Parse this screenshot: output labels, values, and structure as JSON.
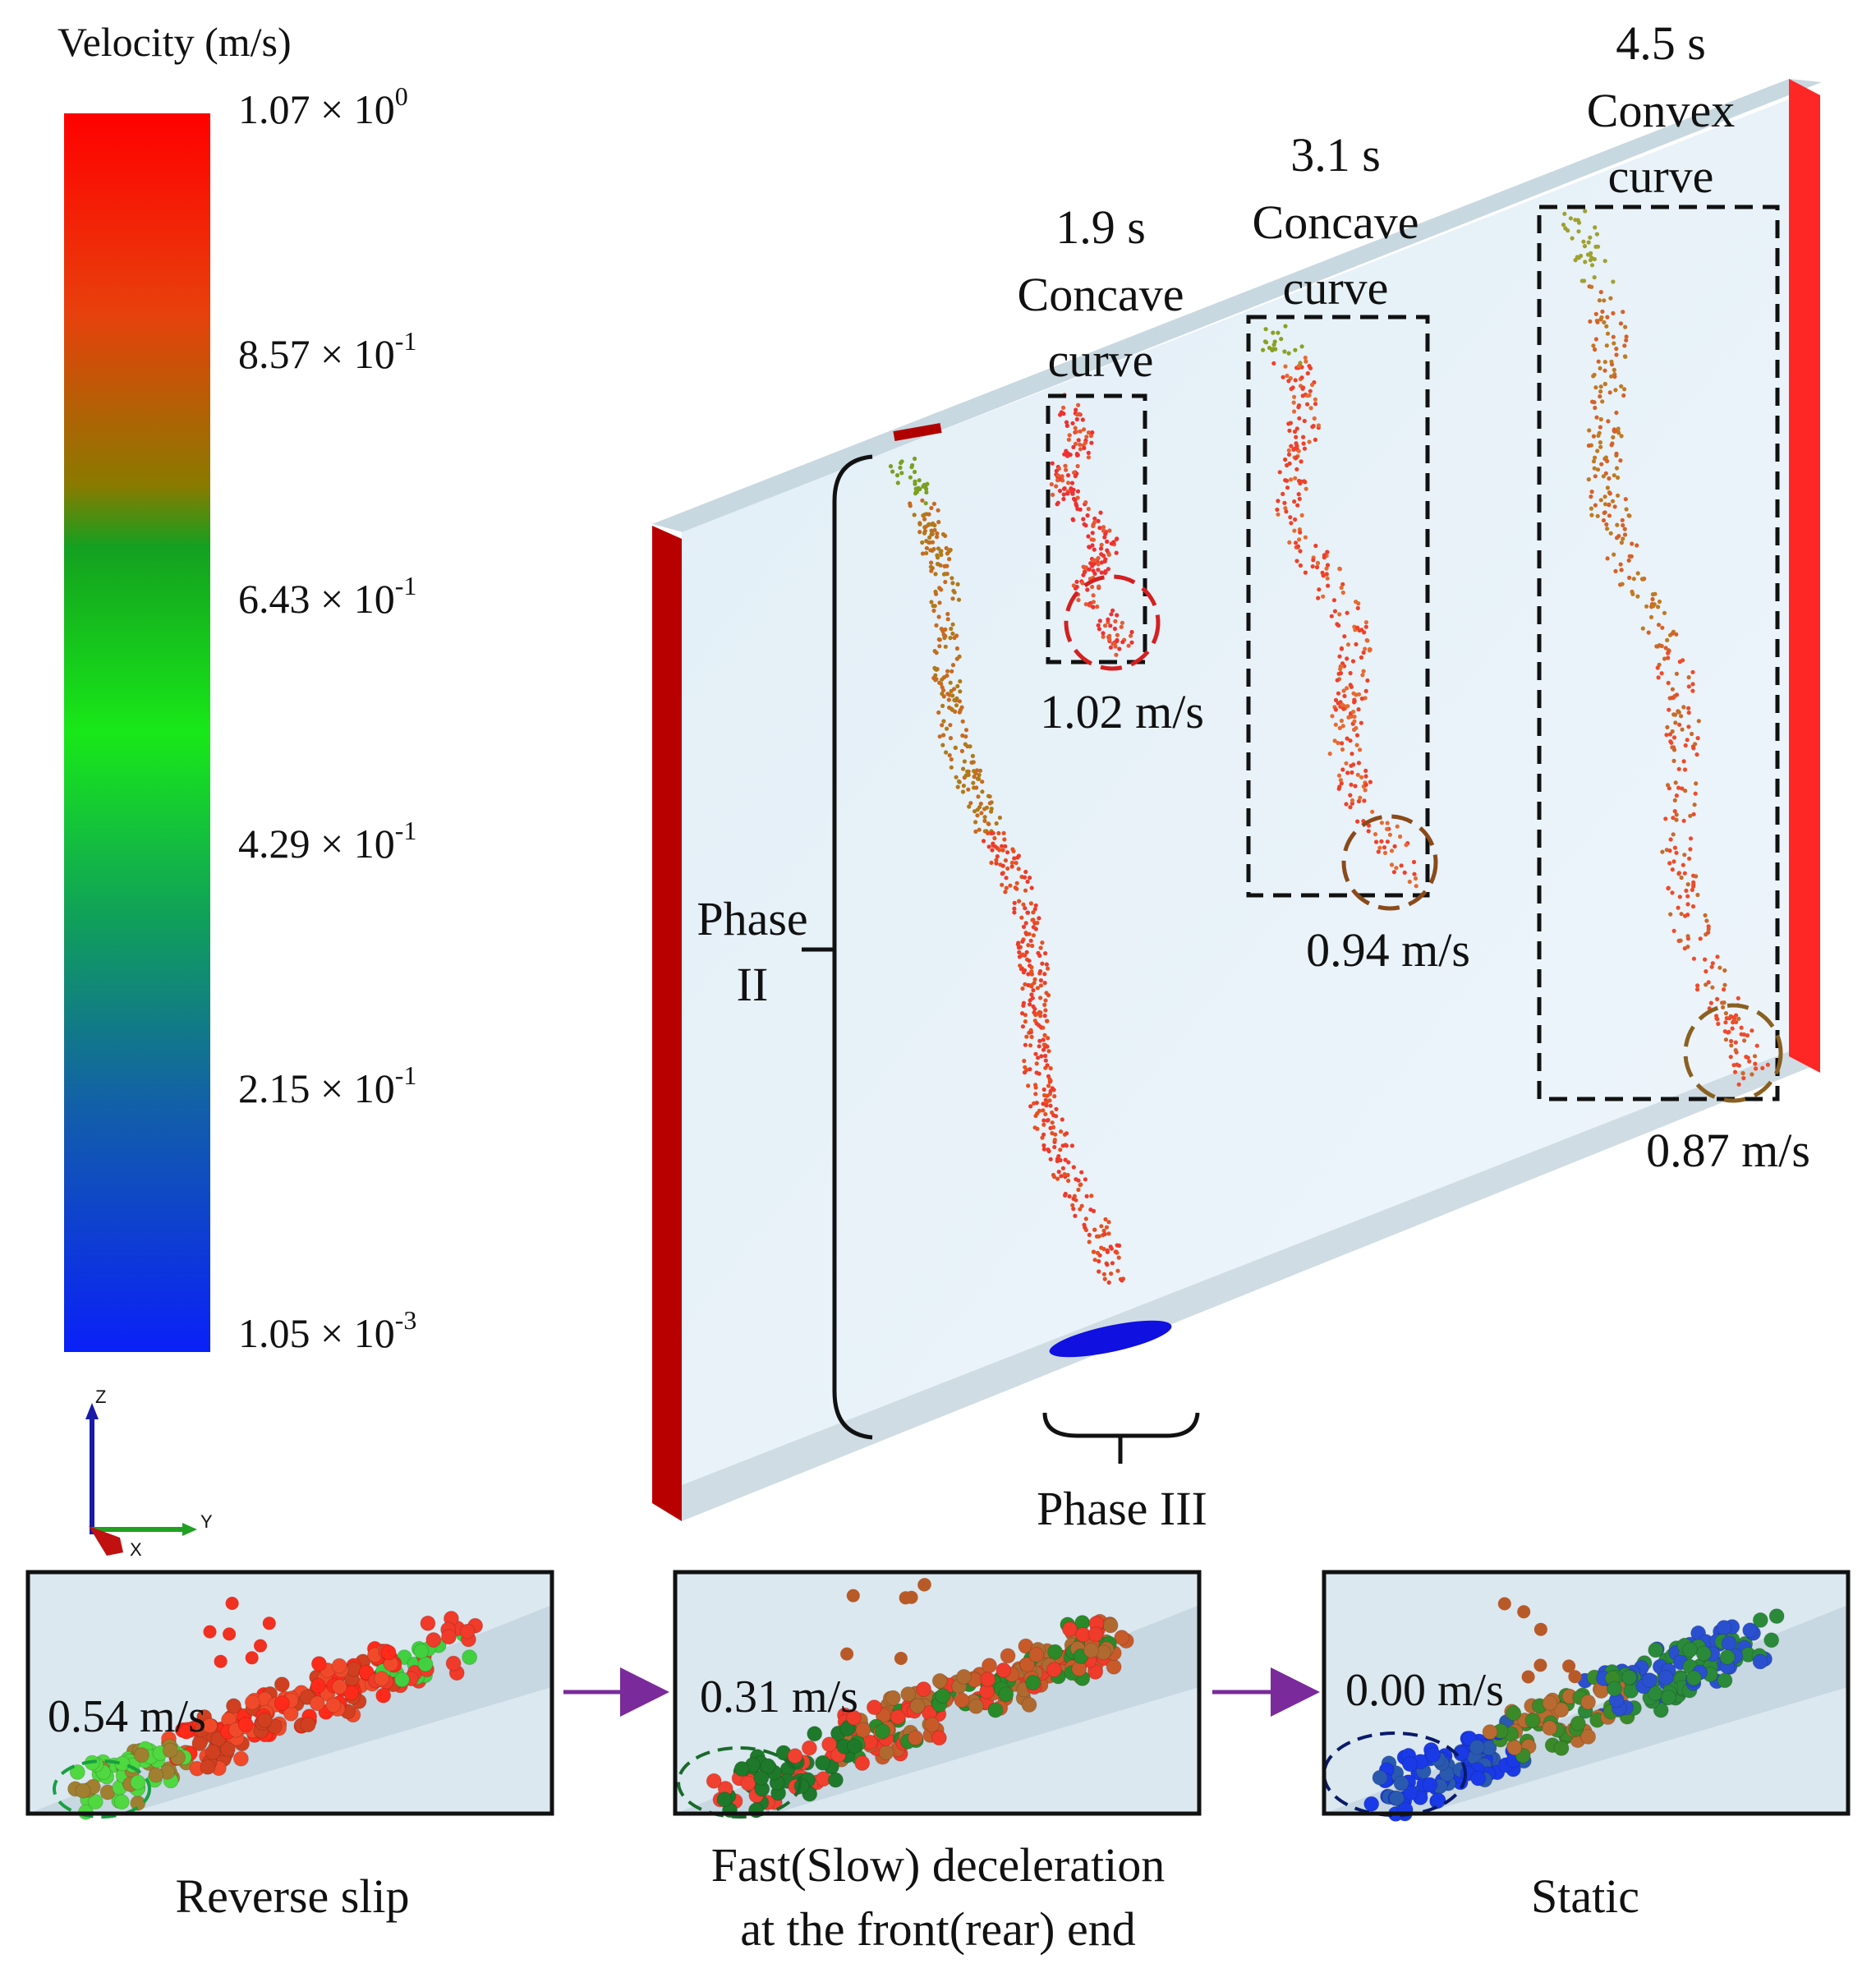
{
  "legend": {
    "title": "Velocity (m/s)",
    "ticks": [
      {
        "mant": "1.07",
        "exp": "0"
      },
      {
        "mant": "8.57",
        "exp": "-1"
      },
      {
        "mant": "6.43",
        "exp": "-1"
      },
      {
        "mant": "4.29",
        "exp": "-1"
      },
      {
        "mant": "2.15",
        "exp": "-1"
      },
      {
        "mant": "1.05",
        "exp": "-3"
      }
    ],
    "times_sign": "× 10",
    "colors": [
      "#ff0000",
      "#e05010",
      "#8a7a00",
      "#14a020",
      "#18e818",
      "#10a05a",
      "#1260a8",
      "#0a20f8"
    ]
  },
  "axes": {
    "z": "Z",
    "y": "Y",
    "x": "X"
  },
  "snapshots": [
    {
      "time": "1.9 s",
      "line1": "Concave",
      "line2": "curve",
      "speed": "1.02 m/s",
      "circle_color": "#d42020"
    },
    {
      "time": "3.1 s",
      "line1": "Concave",
      "line2": "curve",
      "speed": "0.94 m/s",
      "circle_color": "#8a4a1a"
    },
    {
      "time": "4.5 s",
      "line1": "Convex",
      "line2": "curve",
      "speed": "0.87 m/s",
      "circle_color": "#8a6020"
    }
  ],
  "phases": {
    "phase2_line1": "Phase",
    "phase2_line2": "II",
    "phase3": "Phase III"
  },
  "insets": [
    {
      "speed": "0.54 m/s",
      "line1": "Reverse slip",
      "line2": "",
      "circle_color": "#18a040"
    },
    {
      "speed": "0.31 m/s",
      "line1": "Fast(Slow) deceleration",
      "line2": "at the front(rear) end",
      "circle_color": "#1a6a2a"
    },
    {
      "speed": "0.00 m/s",
      "line1": "Static",
      "line2": "",
      "circle_color": "#0a1a6a"
    }
  ],
  "colors": {
    "wall": "#c00000",
    "wall_right": "#ff2020",
    "plate": "#e8f2f8",
    "plate_top": "#c8d8e0",
    "arrow": "#7a2a9a"
  }
}
